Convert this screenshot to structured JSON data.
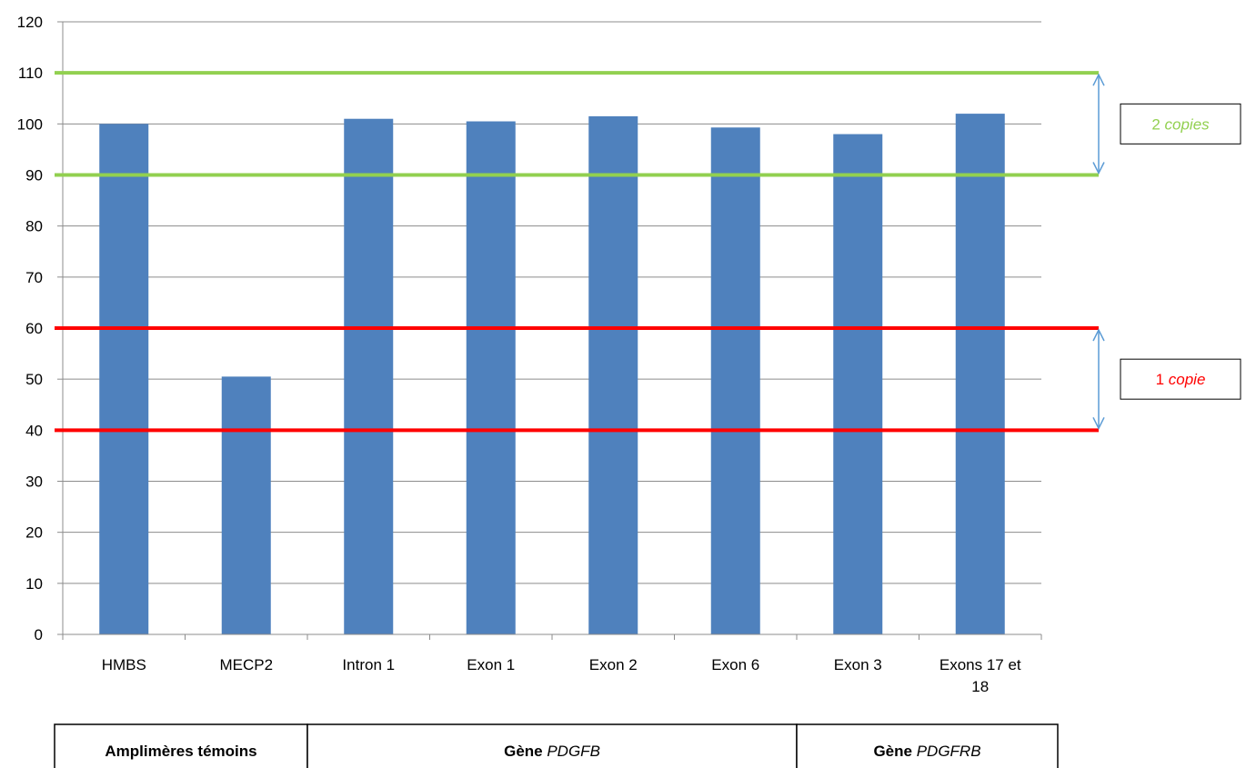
{
  "chart_data": {
    "type": "bar",
    "categories": [
      "HMBS",
      "MECP2",
      "Intron 1",
      "Exon 1",
      "Exon 2",
      "Exon 6",
      "Exon 3",
      "Exons 17 et 18"
    ],
    "category_lines": [
      [
        "HMBS"
      ],
      [
        "MECP2"
      ],
      [
        "Intron 1"
      ],
      [
        "Exon 1"
      ],
      [
        "Exon 2"
      ],
      [
        "Exon 6"
      ],
      [
        "Exon 3"
      ],
      [
        "Exons 17 et",
        "18"
      ]
    ],
    "values": [
      100,
      50.5,
      101,
      100.5,
      101.5,
      99.3,
      98,
      102
    ],
    "ylim": [
      0,
      120
    ],
    "yticks": [
      0,
      10,
      20,
      30,
      40,
      50,
      60,
      70,
      80,
      90,
      100,
      110,
      120
    ],
    "grid": true,
    "bar_color": "#4F81BD",
    "threshold_lines": [
      {
        "value": 110,
        "color": "#92D050"
      },
      {
        "value": 90,
        "color": "#92D050"
      },
      {
        "value": 60,
        "color": "#FF0000"
      },
      {
        "value": 40,
        "color": "#FF0000"
      }
    ],
    "annotations": [
      {
        "count": "2",
        "word": "copies",
        "range": [
          90,
          110
        ],
        "color": "#92D050"
      },
      {
        "count": "1",
        "word": "copie",
        "range": [
          40,
          60
        ],
        "color": "#FF0000"
      }
    ],
    "groups": [
      {
        "prefix": "Amplimères témoins",
        "gene": "",
        "span": [
          0,
          1
        ]
      },
      {
        "prefix": "Gène ",
        "gene": "PDGFB",
        "span": [
          2,
          5
        ]
      },
      {
        "prefix": "Gène ",
        "gene": "PDGFRB",
        "span": [
          6,
          7
        ]
      }
    ]
  }
}
